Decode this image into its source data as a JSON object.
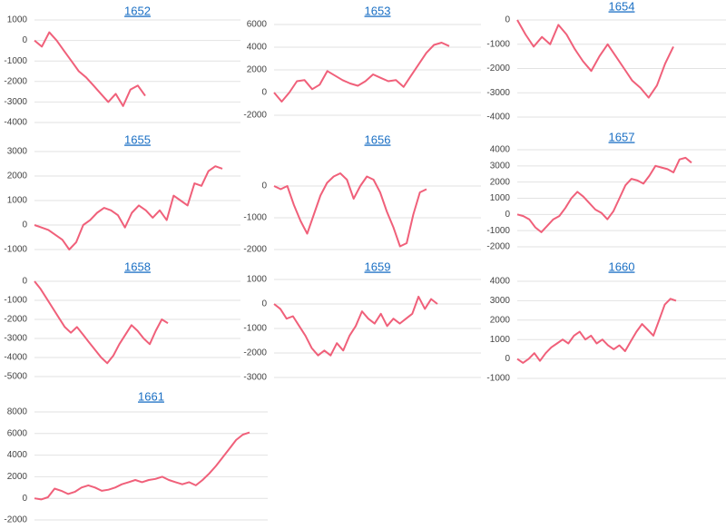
{
  "chart_data": [
    {
      "type": "line",
      "title": "1652",
      "color": "#f0607a",
      "grid": true,
      "ylim": [
        -4000,
        1000
      ],
      "yticks": [
        -4000,
        -3000,
        -2000,
        -1000,
        0,
        1000
      ],
      "values": [
        0,
        -300,
        400,
        0,
        -500,
        -1000,
        -1500,
        -1800,
        -2200,
        -2600,
        -3000,
        -2600,
        -3200,
        -2400,
        -2200,
        -2700
      ]
    },
    {
      "type": "line",
      "title": "1653",
      "color": "#f0607a",
      "grid": true,
      "ylim": [
        -2000,
        6000
      ],
      "yticks": [
        -2000,
        0,
        2000,
        4000,
        6000
      ],
      "values": [
        0,
        -800,
        0,
        1000,
        1100,
        300,
        700,
        1900,
        1500,
        1100,
        800,
        600,
        1000,
        1600,
        1300,
        1000,
        1100,
        500,
        1500,
        2500,
        3500,
        4200,
        4400,
        4100
      ]
    },
    {
      "type": "line",
      "title": "1654",
      "color": "#f0607a",
      "grid": true,
      "ylim": [
        -4000,
        0
      ],
      "yticks": [
        -4000,
        -3000,
        -2000,
        -1000,
        0
      ],
      "values": [
        0,
        -600,
        -1100,
        -700,
        -1000,
        -200,
        -600,
        -1200,
        -1700,
        -2100,
        -1500,
        -1000,
        -1500,
        -2000,
        -2500,
        -2800,
        -3200,
        -2700,
        -1800,
        -1100
      ]
    },
    {
      "type": "line",
      "title": "1655",
      "color": "#f0607a",
      "grid": true,
      "ylim": [
        -1000,
        3000
      ],
      "yticks": [
        -1000,
        0,
        1000,
        2000,
        3000
      ],
      "values": [
        0,
        -100,
        -200,
        -400,
        -600,
        -1000,
        -700,
        0,
        200,
        500,
        700,
        600,
        400,
        -100,
        500,
        800,
        600,
        300,
        600,
        200,
        1200,
        1000,
        800,
        1700,
        1600,
        2200,
        2400,
        2300
      ]
    },
    {
      "type": "line",
      "title": "1656",
      "color": "#f0607a",
      "grid": true,
      "ylim": [
        -2000,
        1000
      ],
      "yticks": [
        -2000,
        -1000,
        0
      ],
      "values": [
        0,
        -100,
        0,
        -600,
        -1100,
        -1500,
        -900,
        -300,
        100,
        300,
        400,
        200,
        -400,
        0,
        300,
        200,
        -200,
        -800,
        -1300,
        -1900,
        -1800,
        -900,
        -200,
        -100
      ]
    },
    {
      "type": "line",
      "title": "1657",
      "color": "#f0607a",
      "grid": true,
      "ylim": [
        -2000,
        4000
      ],
      "yticks": [
        -2000,
        -1000,
        0,
        1000,
        2000,
        3000,
        4000
      ],
      "values": [
        0,
        -100,
        -300,
        -800,
        -1100,
        -700,
        -300,
        -100,
        400,
        1000,
        1400,
        1100,
        700,
        300,
        100,
        -300,
        200,
        1000,
        1800,
        2200,
        2100,
        1900,
        2400,
        3000,
        2900,
        2800,
        2600,
        3400,
        3500,
        3200
      ]
    },
    {
      "type": "line",
      "title": "1658",
      "color": "#f0607a",
      "grid": true,
      "ylim": [
        -5000,
        0
      ],
      "yticks": [
        -5000,
        -4000,
        -3000,
        -2000,
        -1000,
        0
      ],
      "values": [
        0,
        -400,
        -900,
        -1400,
        -1900,
        -2400,
        -2700,
        -2400,
        -2800,
        -3200,
        -3600,
        -4000,
        -4300,
        -3900,
        -3300,
        -2800,
        -2300,
        -2600,
        -3000,
        -3300,
        -2600,
        -2000,
        -2200
      ]
    },
    {
      "type": "line",
      "title": "1659",
      "color": "#f0607a",
      "grid": true,
      "ylim": [
        -3000,
        1000
      ],
      "yticks": [
        -3000,
        -2000,
        -1000,
        0,
        1000
      ],
      "values": [
        0,
        -200,
        -600,
        -500,
        -900,
        -1300,
        -1800,
        -2100,
        -1900,
        -2100,
        -1600,
        -1900,
        -1300,
        -900,
        -300,
        -600,
        -800,
        -400,
        -900,
        -600,
        -800,
        -600,
        -400,
        300,
        -200,
        200,
        0
      ]
    },
    {
      "type": "line",
      "title": "1660",
      "color": "#f0607a",
      "grid": true,
      "ylim": [
        -1000,
        4000
      ],
      "yticks": [
        -1000,
        0,
        1000,
        2000,
        3000,
        4000
      ],
      "values": [
        0,
        -200,
        0,
        300,
        -100,
        300,
        600,
        800,
        1000,
        800,
        1200,
        1400,
        1000,
        1200,
        800,
        1000,
        700,
        500,
        700,
        400,
        900,
        1400,
        1800,
        1500,
        1200,
        2000,
        2800,
        3100,
        3000
      ]
    },
    {
      "type": "line",
      "title": "1661",
      "color": "#f0607a",
      "grid": true,
      "ylim": [
        -2000,
        8000
      ],
      "yticks": [
        -2000,
        0,
        2000,
        4000,
        6000,
        8000
      ],
      "values": [
        0,
        -100,
        100,
        900,
        700,
        400,
        600,
        1000,
        1200,
        1000,
        700,
        800,
        1000,
        1300,
        1500,
        1700,
        1500,
        1700,
        1800,
        2000,
        1700,
        1500,
        1300,
        1500,
        1200,
        1700,
        2300,
        3000,
        3800,
        4600,
        5400,
        5900,
        6100
      ]
    }
  ]
}
